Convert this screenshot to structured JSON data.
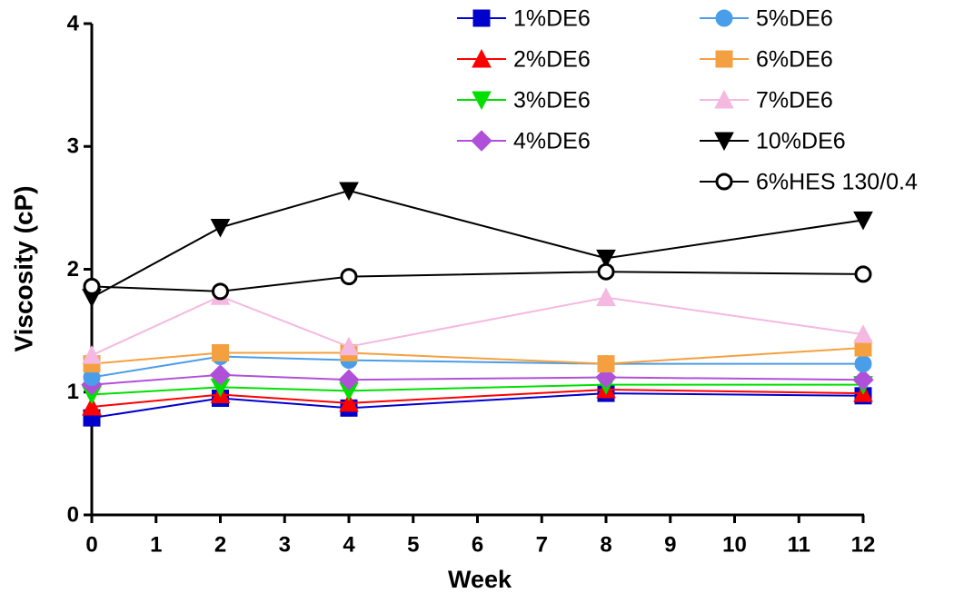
{
  "chart_data": {
    "type": "line",
    "x_label": "Week",
    "y_label": "Viscosity (cP)",
    "x": [
      0,
      2,
      4,
      8,
      12
    ],
    "xlim": [
      0,
      12
    ],
    "xticks": [
      0,
      1,
      2,
      3,
      4,
      5,
      6,
      7,
      8,
      9,
      10,
      11,
      12
    ],
    "ylim": [
      0,
      4
    ],
    "yticks": [
      0,
      1,
      2,
      3,
      4
    ],
    "series": [
      {
        "name": "1%DE6",
        "color": "#0000cc",
        "marker": "square",
        "values": [
          0.79,
          0.95,
          0.87,
          0.99,
          0.97
        ]
      },
      {
        "name": "2%DE6",
        "color": "#ff0000",
        "marker": "triangle-up",
        "values": [
          0.88,
          0.98,
          0.91,
          1.02,
          0.99
        ]
      },
      {
        "name": "3%DE6",
        "color": "#00e000",
        "marker": "triangle-down",
        "values": [
          0.98,
          1.04,
          1.01,
          1.06,
          1.06
        ]
      },
      {
        "name": "4%DE6",
        "color": "#b050d8",
        "marker": "diamond",
        "values": [
          1.06,
          1.14,
          1.1,
          1.12,
          1.1
        ]
      },
      {
        "name": "5%DE6",
        "color": "#4a9de8",
        "marker": "circle",
        "values": [
          1.12,
          1.29,
          1.26,
          1.23,
          1.23
        ]
      },
      {
        "name": "6%DE6",
        "color": "#f5a040",
        "marker": "square",
        "values": [
          1.23,
          1.32,
          1.32,
          1.23,
          1.36
        ]
      },
      {
        "name": "7%DE6",
        "color": "#f5b8e0",
        "marker": "triangle-up",
        "values": [
          1.3,
          1.78,
          1.37,
          1.77,
          1.47
        ]
      },
      {
        "name": "10%DE6",
        "color": "#000000",
        "marker": "triangle-down",
        "values": [
          1.77,
          2.34,
          2.64,
          2.09,
          2.4
        ]
      },
      {
        "name": "6%HES 130/0.4",
        "color": "#000000",
        "marker": "open-circle",
        "values": [
          1.86,
          1.82,
          1.94,
          1.98,
          1.96
        ]
      }
    ]
  }
}
